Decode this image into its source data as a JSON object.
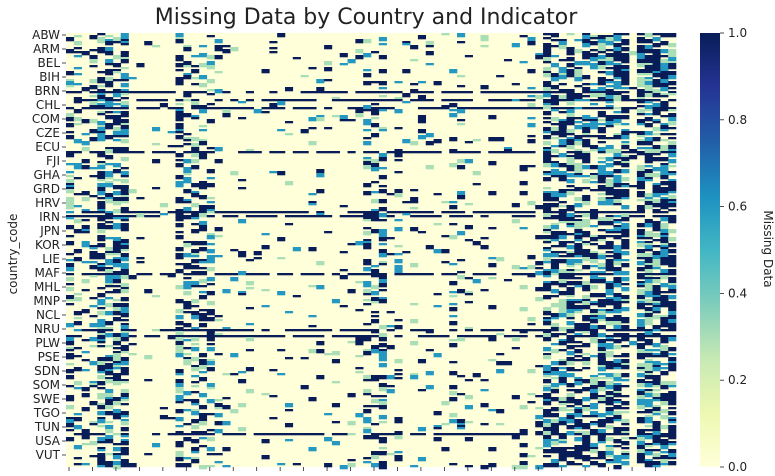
{
  "chart_data": {
    "type": "heatmap",
    "title": "Missing Data by Country and Indicator",
    "ylabel": "country_code",
    "xlabel": "",
    "y_tick_labels": [
      "ABW",
      "ARM",
      "BEL",
      "BIH",
      "BRN",
      "CHL",
      "COM",
      "CZE",
      "ECU",
      "FJI",
      "GHA",
      "GRD",
      "HRV",
      "IRN",
      "JPN",
      "KOR",
      "LIE",
      "MAF",
      "MHL",
      "MNP",
      "NCL",
      "NRU",
      "PLW",
      "PSE",
      "SDN",
      "SOM",
      "SWE",
      "TGO",
      "TUN",
      "USA",
      "VUT"
    ],
    "x_tick_count": 26,
    "row_count": 217,
    "column_count": 78,
    "colorbar": {
      "label": "Missing Data",
      "range": [
        0.0,
        1.0
      ],
      "tick_labels": [
        "0.0",
        "0.2",
        "0.4",
        "0.6",
        "0.8",
        "1.0"
      ],
      "colormap": "YlGnBu",
      "colors": [
        "#ffffd9",
        "#edf8b1",
        "#c7e9b4",
        "#7fcdbb",
        "#41b6c4",
        "#1d91c0",
        "#225ea8",
        "#253494",
        "#081d58"
      ]
    },
    "column_missing_rates": [
      0.3,
      0.22,
      0.25,
      0.2,
      0.55,
      0.5,
      0.45,
      0.6,
      0.02,
      0.03,
      0.02,
      0.04,
      0.03,
      0.02,
      0.35,
      0.3,
      0.4,
      0.25,
      0.3,
      0.06,
      0.05,
      0.02,
      0.04,
      0.03,
      0.02,
      0.08,
      0.04,
      0.03,
      0.06,
      0.03,
      0.02,
      0.04,
      0.06,
      0.05,
      0.04,
      0.03,
      0.06,
      0.05,
      0.3,
      0.25,
      0.28,
      0.06,
      0.12,
      0.05,
      0.1,
      0.06,
      0.05,
      0.08,
      0.04,
      0.12,
      0.12,
      0.06,
      0.05,
      0.06,
      0.05,
      0.04,
      0.05,
      0.06,
      0.08,
      0.1,
      0.06,
      0.55,
      0.45,
      0.5,
      0.55,
      0.45,
      0.5,
      0.45,
      0.5,
      0.5,
      0.55,
      0.55,
      0.05,
      0.7,
      0.65,
      0.65,
      0.6,
      0.55
    ]
  }
}
